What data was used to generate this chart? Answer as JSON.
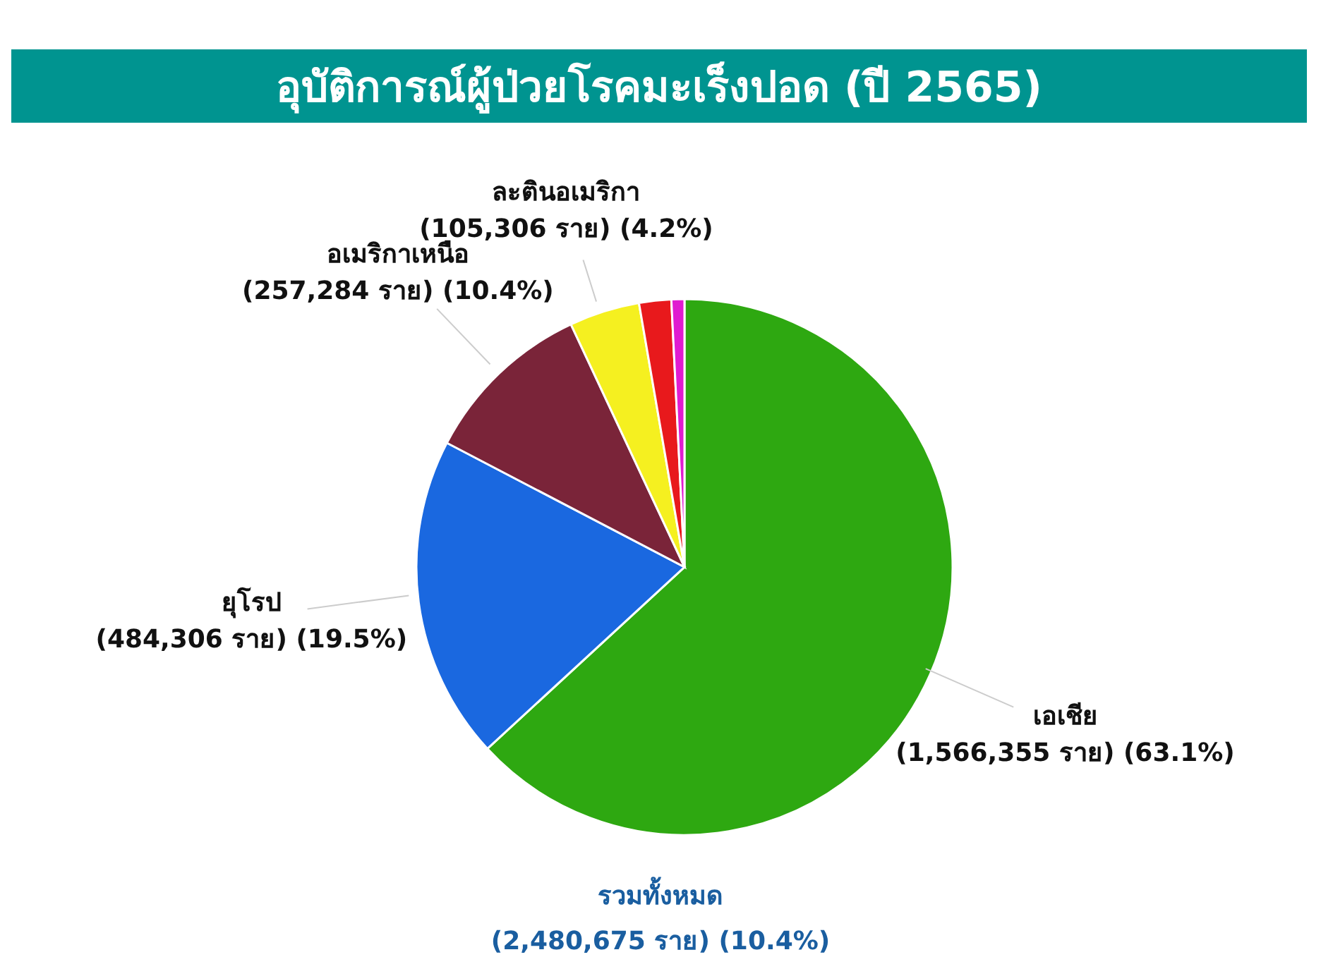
{
  "chart_data": {
    "type": "pie",
    "title": "อุบัติการณ์ผู้ป่วยโรคมะเร็งปอด (ปี 2565)",
    "categories": [
      "เอเชีย",
      "ยุโรป",
      "อเมริกาเหนือ",
      "ละตินอเมริกา",
      null,
      null
    ],
    "values": [
      1566355,
      484306,
      257284,
      105306,
      48000,
      19424
    ],
    "colors": [
      "#2ea811",
      "#1a68e0",
      "#7a2439",
      "#f5f020",
      "#e8191c",
      "#e01cd0"
    ],
    "value_labels": [
      "(1,566,355 ราย) (63.1%)",
      "(484,306 ราย) (19.5%)",
      "(257,284 ราย) (10.4%)",
      "(105,306 ราย) (4.2%)",
      null,
      null
    ],
    "annotations": [
      "รวมทั้งหมด",
      "(2,480,675 ราย) (10.4%)"
    ]
  }
}
